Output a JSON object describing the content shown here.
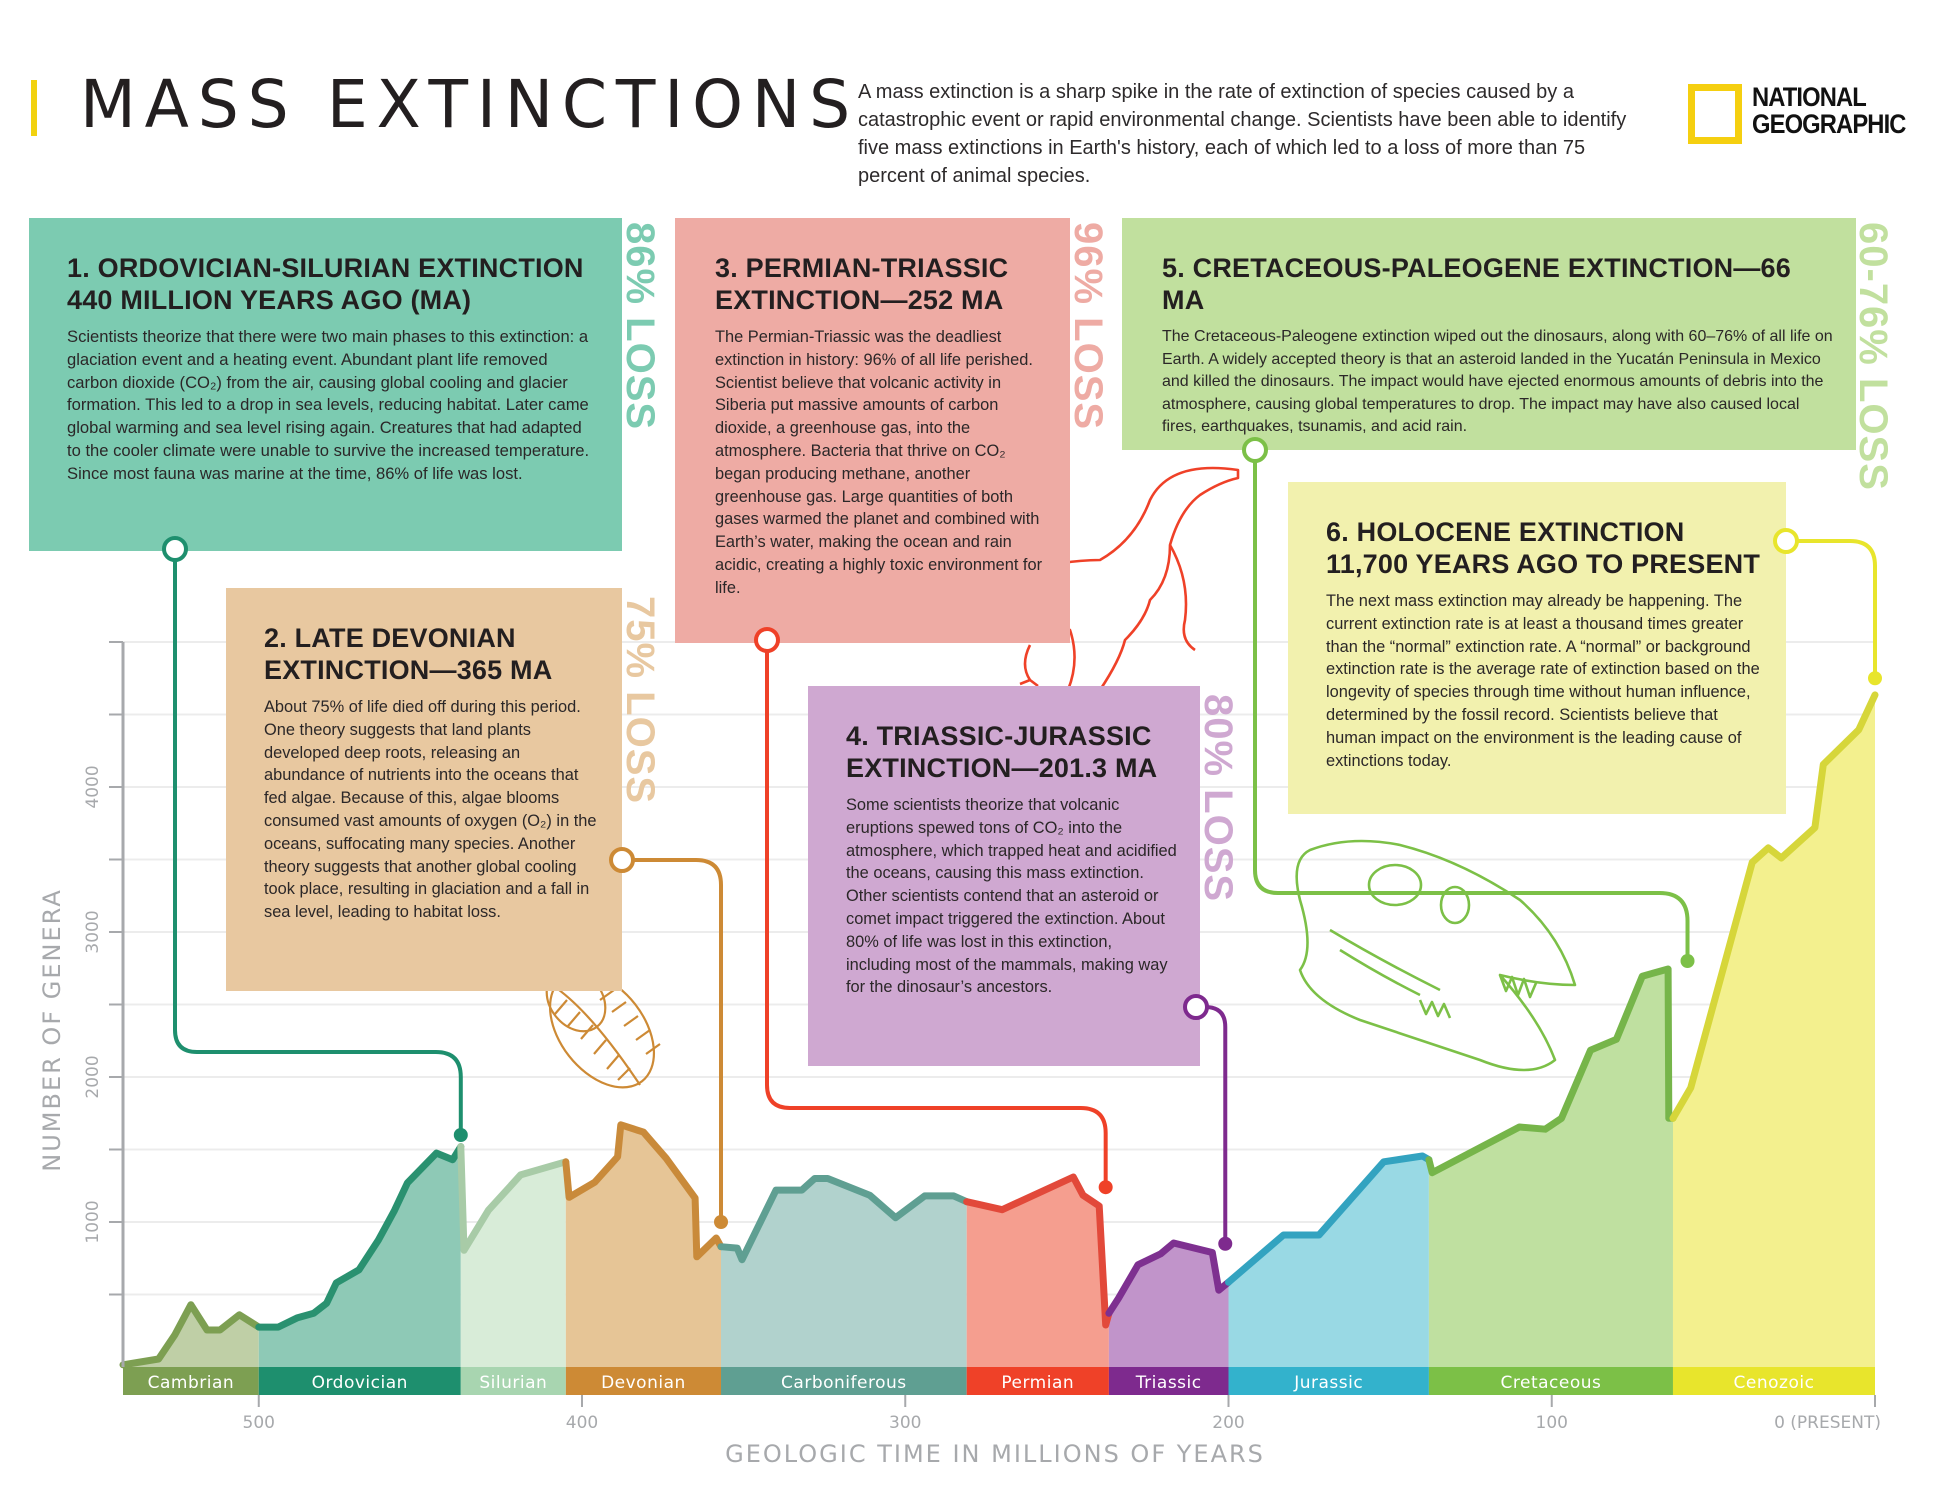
{
  "header": {
    "title": "MASS EXTINCTIONS",
    "intro": "A mass extinction is a sharp spike in the rate of extinction of species caused by a catastrophic event or rapid environmental change. Scientists have been able to identify five mass extinctions in Earth's history, each of which led to a loss of more than 75 percent of animal species.",
    "logo_line1": "NATIONAL",
    "logo_line2": "GEOGRAPHIC",
    "accent_color": "#f2d20f"
  },
  "extinctions": [
    {
      "title_line1": "1. ORDOVICIAN-SILURIAN EXTINCTION",
      "title_line2": "440 MILLION YEARS AGO (MA)",
      "body": "Scientists theorize that there were two main phases to this extinction: a glaciation event and a heating event. Abundant plant life removed carbon dioxide (CO₂) from the air, causing global cooling and glacier formation. This led to a drop in sea levels, reducing habitat. Later came global warming and sea level rising again. Creatures that had adapted to the cooler climate were unable to survive the increased temperature. Since most fauna was marine at the time, 86% of life was lost.",
      "loss": "86% LOSS",
      "age_ma": 440,
      "loss_percent": 86,
      "color": "#7ccbb1",
      "line_color": "#1e8f6e"
    },
    {
      "title_line1": "2. LATE DEVONIAN",
      "title_line2": "EXTINCTION—365 MA",
      "body": "About 75% of life died off during this period. One theory suggests that land plants developed deep roots, releasing an abundance of nutrients into the oceans that fed algae. Because of this, algae blooms consumed vast amounts of oxygen (O₂) in the oceans, suffocating many species. Another theory suggests that another global cooling took place, resulting in glaciation and a fall in sea level, leading to habitat loss.",
      "loss": "75% LOSS",
      "age_ma": 365,
      "loss_percent": 75,
      "color": "#e8c8a0",
      "line_color": "#cd8a35"
    },
    {
      "title_line1": "3. PERMIAN-TRIASSIC",
      "title_line2": "EXTINCTION—252 MA",
      "body": "The Permian-Triassic was the deadliest extinction in history: 96% of all life perished. Scientist believe that volcanic activity in Siberia put massive amounts of carbon dioxide, a greenhouse gas, into the atmosphere. Bacteria that thrive on CO₂ began producing methane, another greenhouse gas. Large quantities of both gases warmed the planet and combined with Earth’s water, making the ocean and rain acidic, creating a highly toxic environment for life.",
      "loss": "96% LOSS",
      "age_ma": 252,
      "loss_percent": 96,
      "color": "#eeaba4",
      "line_color": "#ef4128"
    },
    {
      "title_line1": "4. TRIASSIC-JURASSIC",
      "title_line2": "EXTINCTION—201.3 MA",
      "body": "Some scientists theorize that volcanic eruptions spewed tons of CO₂ into the atmosphere, which trapped heat and acidified the oceans, causing this mass extinction. Other scientists contend that an asteroid or comet impact triggered the extinction. About 80% of life was lost in this extinction, including most of the mammals, making way for the dinosaur’s ancestors.",
      "loss": "80% LOSS",
      "age_ma": 201.3,
      "loss_percent": 80,
      "color": "#cfa8d1",
      "line_color": "#7e2a8e"
    },
    {
      "title_line1": "5. CRETACEOUS-PALEOGENE EXTINCTION—66 MA",
      "title_line2": "",
      "body": "The Cretaceous-Paleogene extinction wiped out the dinosaurs, along with 60–76% of all life on Earth. A widely accepted theory is that an asteroid landed in the Yucatán Peninsula in Mexico and killed the dinosaurs. The impact would have ejected enormous amounts of debris into the atmosphere, causing global temperatures to drop. The impact may have also caused local fires, earthquakes, tsunamis, and acid rain.",
      "loss": "60-76% LOSS",
      "age_ma": 66,
      "loss_percent": "60-76",
      "color": "#c1e09e",
      "line_color": "#7cc047"
    },
    {
      "title_line1": "6. HOLOCENE EXTINCTION",
      "title_line2": "11,700 YEARS AGO TO PRESENT",
      "body": "The next mass extinction may already be happening. The current extinction rate is at least a thousand times greater than the “normal” extinction rate. A “normal” or background extinction rate is the average rate of extinction based on the longevity of species through time without human influence, determined by the fossil record. Scientists believe that human impact on the environment is the leading cause of extinctions today.",
      "loss": "",
      "age_ma": 0.0117,
      "color": "#f2f1ae",
      "line_color": "#e8e52c"
    }
  ],
  "chart_data": {
    "type": "area",
    "title": "MASS EXTINCTIONS",
    "xlabel": "GEOLOGIC TIME IN MILLIONS OF YEARS",
    "ylabel": "NUMBER OF GENERA",
    "xlim": [
      542,
      0
    ],
    "ylim": [
      0,
      5000
    ],
    "x_ticks": [
      500,
      400,
      300,
      200,
      100,
      0
    ],
    "x_tick_labels": [
      "500",
      "400",
      "300",
      "200",
      "100",
      "0 (PRESENT)"
    ],
    "y_ticks": [
      1000,
      2000,
      3000,
      4000
    ],
    "y_tick_labels": [
      "1000",
      "2000",
      "3000",
      "4000"
    ],
    "y_minor_step": 500,
    "grid": true,
    "periods": [
      {
        "name": "Cambrian",
        "start": 542,
        "end": 500,
        "band": "#7d9f52",
        "fill": "#bfcfa6",
        "line": "#7d9f52"
      },
      {
        "name": "Ordovician",
        "start": 500,
        "end": 437.5,
        "band": "#1e8f6e",
        "fill": "#8ec9b6",
        "line": "#2a9170"
      },
      {
        "name": "Silurian",
        "start": 437.5,
        "end": 405,
        "band": "#a8d5b0",
        "fill": "#d8ecd8",
        "line": "#a8cba7"
      },
      {
        "name": "Devonian",
        "start": 405,
        "end": 357,
        "band": "#cd8a35",
        "fill": "#e6c596",
        "line": "#c98a3a"
      },
      {
        "name": "Carboniferous",
        "start": 357,
        "end": 281,
        "band": "#5f9f92",
        "fill": "#b1d2cd",
        "line": "#5f9f92"
      },
      {
        "name": "Permian",
        "start": 281,
        "end": 237,
        "band": "#ef4128",
        "fill": "#f59e8f",
        "line": "#e2493a"
      },
      {
        "name": "Triassic",
        "start": 237,
        "end": 200,
        "band": "#7e2a8e",
        "fill": "#c194ca",
        "line": "#7e3090"
      },
      {
        "name": "Jurassic",
        "start": 200,
        "end": 138,
        "band": "#33b2cc",
        "fill": "#99d9e4",
        "line": "#33a3c0"
      },
      {
        "name": "Cretaceous",
        "start": 138,
        "end": 62.5,
        "band": "#7cc047",
        "fill": "#bfe0a0",
        "line": "#76b54a"
      },
      {
        "name": "Cenozoic",
        "start": 62.5,
        "end": 0,
        "band": "#e8e52c",
        "fill": "#f3f08e",
        "line": "#d6d63a"
      }
    ],
    "series": [
      {
        "name": "Cambrian",
        "points": [
          [
            542,
            15
          ],
          [
            531,
            55
          ],
          [
            526,
            220
          ],
          [
            521,
            430
          ],
          [
            516,
            255
          ],
          [
            512,
            255
          ],
          [
            506,
            360
          ],
          [
            500,
            275
          ]
        ]
      },
      {
        "name": "Ordovician",
        "points": [
          [
            500,
            275
          ],
          [
            494,
            275
          ],
          [
            488,
            340
          ],
          [
            483,
            370
          ],
          [
            479,
            440
          ],
          [
            476,
            580
          ],
          [
            469,
            670
          ],
          [
            463,
            875
          ],
          [
            458,
            1080
          ],
          [
            454,
            1270
          ],
          [
            445,
            1475
          ],
          [
            440,
            1430
          ],
          [
            437.5,
            1520
          ]
        ]
      },
      {
        "name": "Silurian",
        "points": [
          [
            437.5,
            1520
          ],
          [
            436.5,
            805
          ],
          [
            429,
            1080
          ],
          [
            419,
            1325
          ],
          [
            405,
            1415
          ]
        ]
      },
      {
        "name": "Devonian",
        "points": [
          [
            405,
            1415
          ],
          [
            404,
            1170
          ],
          [
            396,
            1275
          ],
          [
            389,
            1450
          ],
          [
            388,
            1670
          ],
          [
            381,
            1620
          ],
          [
            374,
            1440
          ],
          [
            365,
            1165
          ],
          [
            364.5,
            760
          ],
          [
            358.5,
            890
          ],
          [
            357,
            830
          ]
        ]
      },
      {
        "name": "Carboniferous",
        "points": [
          [
            357,
            830
          ],
          [
            352,
            820
          ],
          [
            350.5,
            740
          ],
          [
            340,
            1220
          ],
          [
            332,
            1220
          ],
          [
            328,
            1300
          ],
          [
            324,
            1300
          ],
          [
            311,
            1185
          ],
          [
            303,
            1030
          ],
          [
            294,
            1180
          ],
          [
            285,
            1180
          ],
          [
            281,
            1140
          ]
        ]
      },
      {
        "name": "Permian",
        "points": [
          [
            281,
            1140
          ],
          [
            270,
            1085
          ],
          [
            248,
            1310
          ],
          [
            245,
            1185
          ],
          [
            240,
            1110
          ],
          [
            238,
            290
          ],
          [
            237,
            370
          ]
        ]
      },
      {
        "name": "Triassic",
        "points": [
          [
            237,
            370
          ],
          [
            234,
            475
          ],
          [
            228,
            705
          ],
          [
            221,
            780
          ],
          [
            217,
            855
          ],
          [
            205,
            790
          ],
          [
            203,
            530
          ],
          [
            200,
            585
          ]
        ]
      },
      {
        "name": "Jurassic",
        "points": [
          [
            200,
            585
          ],
          [
            183,
            910
          ],
          [
            172,
            910
          ],
          [
            152,
            1415
          ],
          [
            140,
            1455
          ],
          [
            138,
            1430
          ]
        ]
      },
      {
        "name": "Cretaceous",
        "points": [
          [
            138,
            1430
          ],
          [
            137,
            1340
          ],
          [
            110,
            1655
          ],
          [
            102,
            1640
          ],
          [
            97,
            1715
          ],
          [
            88,
            2185
          ],
          [
            80,
            2260
          ],
          [
            72,
            2695
          ],
          [
            64,
            2745
          ],
          [
            63.8,
            1715
          ],
          [
            62.5,
            1715
          ]
        ]
      },
      {
        "name": "Cenozoic",
        "points": [
          [
            62.5,
            1715
          ],
          [
            57,
            1925
          ],
          [
            38,
            3480
          ],
          [
            33,
            3580
          ],
          [
            29,
            3510
          ],
          [
            18.6,
            3720
          ],
          [
            16,
            4155
          ],
          [
            5,
            4395
          ],
          [
            0,
            4635
          ]
        ]
      }
    ],
    "extinction_markers": [
      {
        "event": 1,
        "ma": 437.5,
        "genera": 1600
      },
      {
        "event": 2,
        "ma": 357,
        "genera": 1000
      },
      {
        "event": 3,
        "ma": 238,
        "genera": 1240
      },
      {
        "event": 4,
        "ma": 201,
        "genera": 850
      },
      {
        "event": 5,
        "ma": 58,
        "genera": 2800
      },
      {
        "event": 6,
        "ma": 0,
        "genera": 4750
      }
    ]
  }
}
